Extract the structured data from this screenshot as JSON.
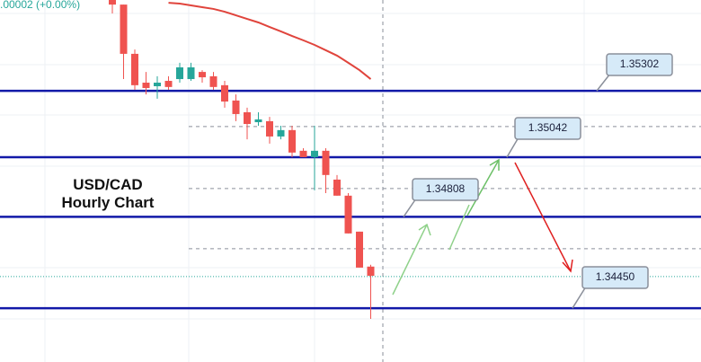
{
  "chart_data": {
    "type": "candlestick",
    "title": "USD/CAD\nHourly Chart",
    "change_label": ".00002 (+0.00%)",
    "categories": [
      null,
      null,
      null,
      null,
      null,
      null,
      null,
      null,
      null,
      null,
      null,
      null,
      null,
      null,
      null,
      null,
      null,
      null,
      null,
      null,
      null,
      null,
      null,
      null
    ],
    "open": [
      1.35658,
      1.3564,
      1.35447,
      1.35334,
      1.3532,
      1.35341,
      1.35348,
      1.35348,
      1.35376,
      1.35359,
      1.35324,
      1.35264,
      1.35218,
      1.35179,
      1.35183,
      1.35123,
      1.35148,
      1.35067,
      1.35042,
      1.35067,
      1.34954,
      1.34891,
      1.3475,
      1.34613
    ],
    "high": [
      1.35658,
      1.3564,
      1.35464,
      1.35376,
      1.35359,
      1.35359,
      1.35412,
      1.35412,
      1.35383,
      1.35376,
      1.35341,
      1.35288,
      1.35236,
      1.35218,
      1.352,
      1.35165,
      1.35165,
      1.35077,
      1.35165,
      1.35077,
      1.34972,
      1.34901,
      1.3475,
      1.3462
    ],
    "low": [
      1.35605,
      1.35348,
      1.35306,
      1.35288,
      1.35271,
      1.35306,
      1.35334,
      1.35341,
      1.35334,
      1.35306,
      1.35236,
      1.35183,
      1.35112,
      1.35165,
      1.35095,
      1.35112,
      1.35042,
      1.35042,
      1.34912,
      1.34901,
      1.34891,
      1.34743,
      1.34609,
      1.34408
    ],
    "close": [
      1.3564,
      1.35447,
      1.35324,
      1.35313,
      1.35334,
      1.35317,
      1.35394,
      1.35394,
      1.35355,
      1.35317,
      1.3526,
      1.35211,
      1.35172,
      1.3519,
      1.35123,
      1.35148,
      1.3506,
      1.35042,
      1.35067,
      1.34972,
      1.34891,
      1.34743,
      1.34609,
      1.34577
    ],
    "up_color": "#26a69a",
    "down_color": "#ef5350",
    "moving_average": {
      "color": "#e0443c",
      "values": [
        null,
        null,
        null,
        null,
        null,
        1.35647,
        1.35644,
        1.35637,
        1.3563,
        1.35623,
        1.35612,
        1.35598,
        1.35584,
        1.3557,
        1.35552,
        1.35535,
        1.35517,
        1.355,
        1.35482,
        1.35461,
        1.3544,
        1.35412,
        1.35383,
        1.35348
      ]
    },
    "levels": {
      "color": "#1219a8",
      "values": [
        1.35302,
        1.35042,
        1.34808,
        {
          "value": 1.3445,
          "label": "1.34450"
        }
      ]
    },
    "dashed_levels": {
      "color": "#8a8f9a",
      "values": [
        1.35162,
        1.34919,
        1.34683
      ]
    },
    "current_price": {
      "color": "#26a69a",
      "value": 1.34574
    },
    "ylim": [
      1.34239,
      1.35658
    ]
  }
}
